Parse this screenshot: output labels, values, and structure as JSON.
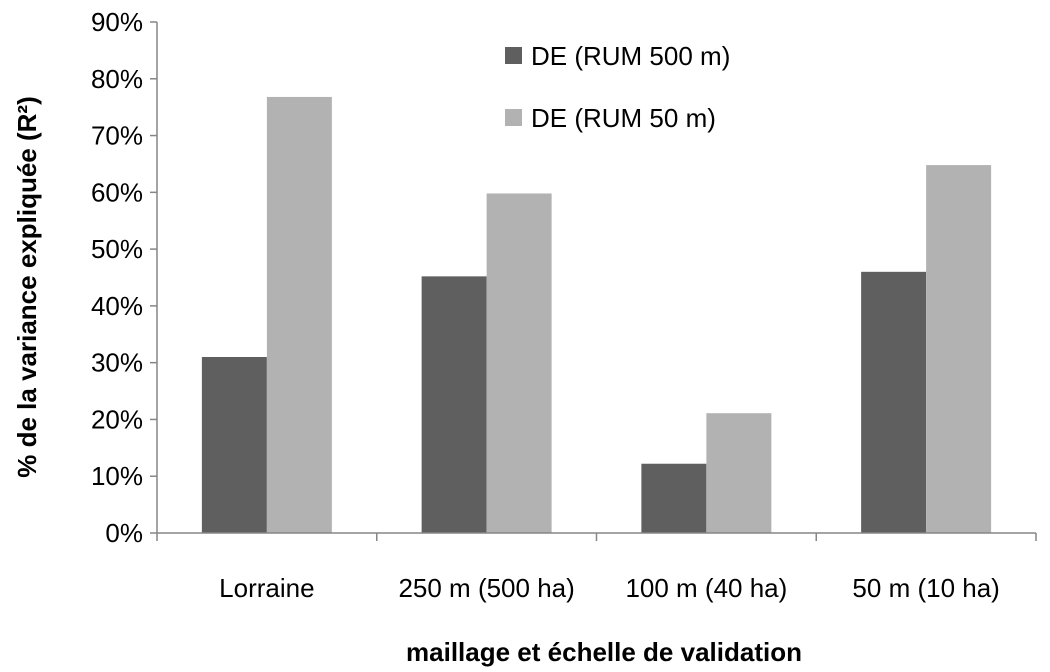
{
  "chart_data": {
    "type": "bar",
    "title": "",
    "xlabel": "maillage et échelle de validation",
    "ylabel": "% de la variance expliquée (R²)",
    "categories": [
      "Lorraine",
      "250 m (500 ha)",
      "100 m (40 ha)",
      "50 m (10 ha)"
    ],
    "series": [
      {
        "name": "DE (RUM 500 m)",
        "values": [
          0.31,
          0.452,
          0.122,
          0.46
        ],
        "color": "#5f5f5f"
      },
      {
        "name": "DE (RUM 50 m)",
        "values": [
          0.768,
          0.598,
          0.211,
          0.648
        ],
        "color": "#b2b2b2"
      }
    ],
    "ylim": [
      0,
      0.9
    ],
    "yticks": [
      0,
      0.1,
      0.2,
      0.3,
      0.4,
      0.5,
      0.6,
      0.7,
      0.8,
      0.9
    ],
    "ytick_labels": [
      "0%",
      "10%",
      "20%",
      "30%",
      "40%",
      "50%",
      "60%",
      "70%",
      "80%",
      "90%"
    ],
    "grid": false,
    "legend_position": "top-right"
  }
}
